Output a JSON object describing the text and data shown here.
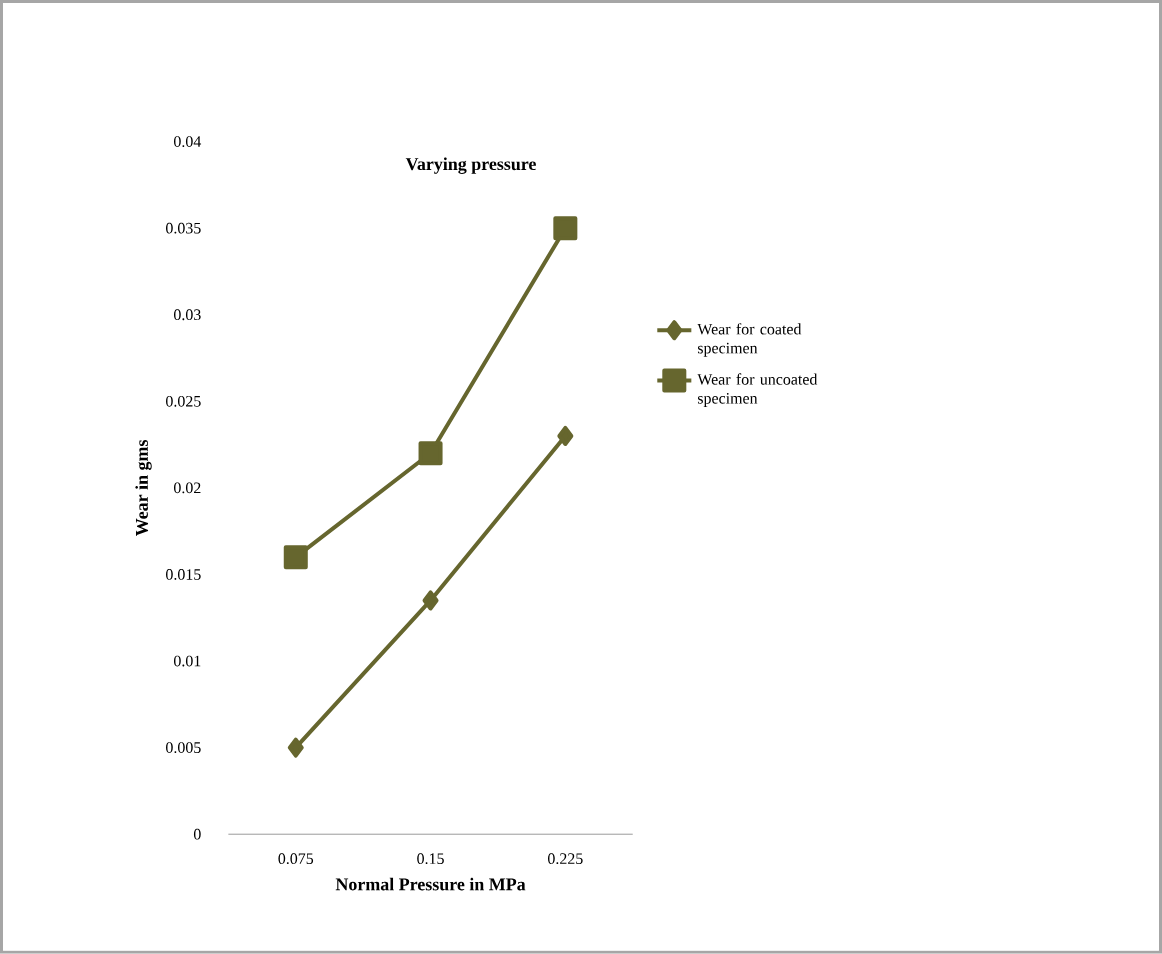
{
  "chart_data": {
    "type": "line",
    "title": "Varying pressure",
    "xlabel": "Normal Pressure in MPa",
    "ylabel": "Wear in gms",
    "categories": [
      "0.075",
      "0.15",
      "0.225"
    ],
    "series": [
      {
        "name": "Wear for coated specimen",
        "color": "#66662e",
        "marker": "diamond",
        "values": [
          0.005,
          0.0135,
          0.023
        ]
      },
      {
        "name": "Wear for uncoated specimen",
        "color": "#66662e",
        "marker": "square",
        "values": [
          0.016,
          0.022,
          0.035
        ]
      }
    ],
    "ylim": [
      0,
      0.04
    ],
    "yticks": [
      0,
      0.005,
      0.01,
      0.015,
      0.02,
      0.025,
      0.03,
      0.035,
      0.04
    ],
    "grid": false,
    "legend": "right"
  }
}
